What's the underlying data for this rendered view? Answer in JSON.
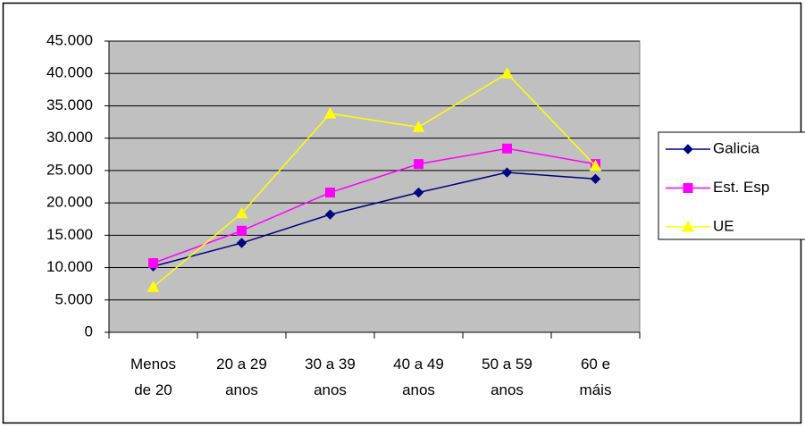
{
  "chart_data": {
    "type": "line",
    "categories": [
      "Menos de 20",
      "20 a 29 anos",
      "30 a 39 anos",
      "40 a 49 anos",
      "50 a 59 anos",
      "60 e máis"
    ],
    "series": [
      {
        "name": "Galicia",
        "color": "#000080",
        "marker": "diamond",
        "values": [
          10200,
          13800,
          18200,
          21600,
          24700,
          23700
        ]
      },
      {
        "name": "Est. Esp",
        "color": "#FF00FF",
        "marker": "square",
        "values": [
          10700,
          15700,
          21600,
          26000,
          28400,
          26000
        ]
      },
      {
        "name": "UE",
        "color": "#FFFF00",
        "marker": "triangle",
        "values": [
          7000,
          18400,
          33800,
          31700,
          40000,
          25700
        ]
      }
    ],
    "ylim": [
      0,
      45000
    ],
    "yticks": [
      0,
      {
        "value": 5000,
        "label": "5.000"
      },
      {
        "value": 10000,
        "label": "10.000"
      },
      {
        "value": 15000,
        "label": "15.000"
      },
      {
        "value": 20000,
        "label": "20.000"
      },
      {
        "value": 25000,
        "label": "25.000"
      },
      {
        "value": 30000,
        "label": "30.000"
      },
      {
        "value": 35000,
        "label": "35.000"
      },
      {
        "value": 40000,
        "label": "40.000"
      },
      {
        "value": 45000,
        "label": "45.000"
      }
    ],
    "grid": true,
    "legend": "right"
  }
}
